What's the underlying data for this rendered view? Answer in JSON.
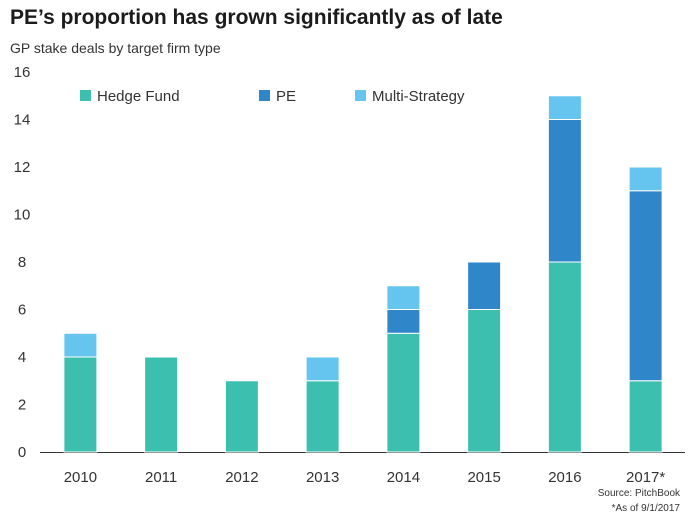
{
  "header": {
    "title": "PE’s proportion has grown significantly as of late",
    "subtitle": "GP stake deals by target firm type"
  },
  "footer": {
    "source": "Source: PitchBook",
    "footnote": "*As of 9/1/2017"
  },
  "chart_data": {
    "type": "bar",
    "stacked": true,
    "categories": [
      "2010",
      "2011",
      "2012",
      "2013",
      "2014",
      "2015",
      "2016",
      "2017*"
    ],
    "series": [
      {
        "name": "Hedge Fund",
        "color": "#3dbfb0",
        "values": [
          4,
          4,
          3,
          3,
          5,
          6,
          8,
          3
        ]
      },
      {
        "name": "PE",
        "color": "#2f86c9",
        "values": [
          0,
          0,
          0,
          0,
          1,
          2,
          6,
          8
        ]
      },
      {
        "name": "Multi-Strategy",
        "color": "#66c5ee",
        "values": [
          1,
          0,
          0,
          1,
          1,
          0,
          1,
          1
        ]
      }
    ],
    "ylim": [
      0,
      16
    ],
    "yticks": [
      0,
      2,
      4,
      6,
      8,
      10,
      12,
      14,
      16
    ],
    "grid": false,
    "legend_position": "top-left",
    "xlabel": "",
    "ylabel": ""
  }
}
